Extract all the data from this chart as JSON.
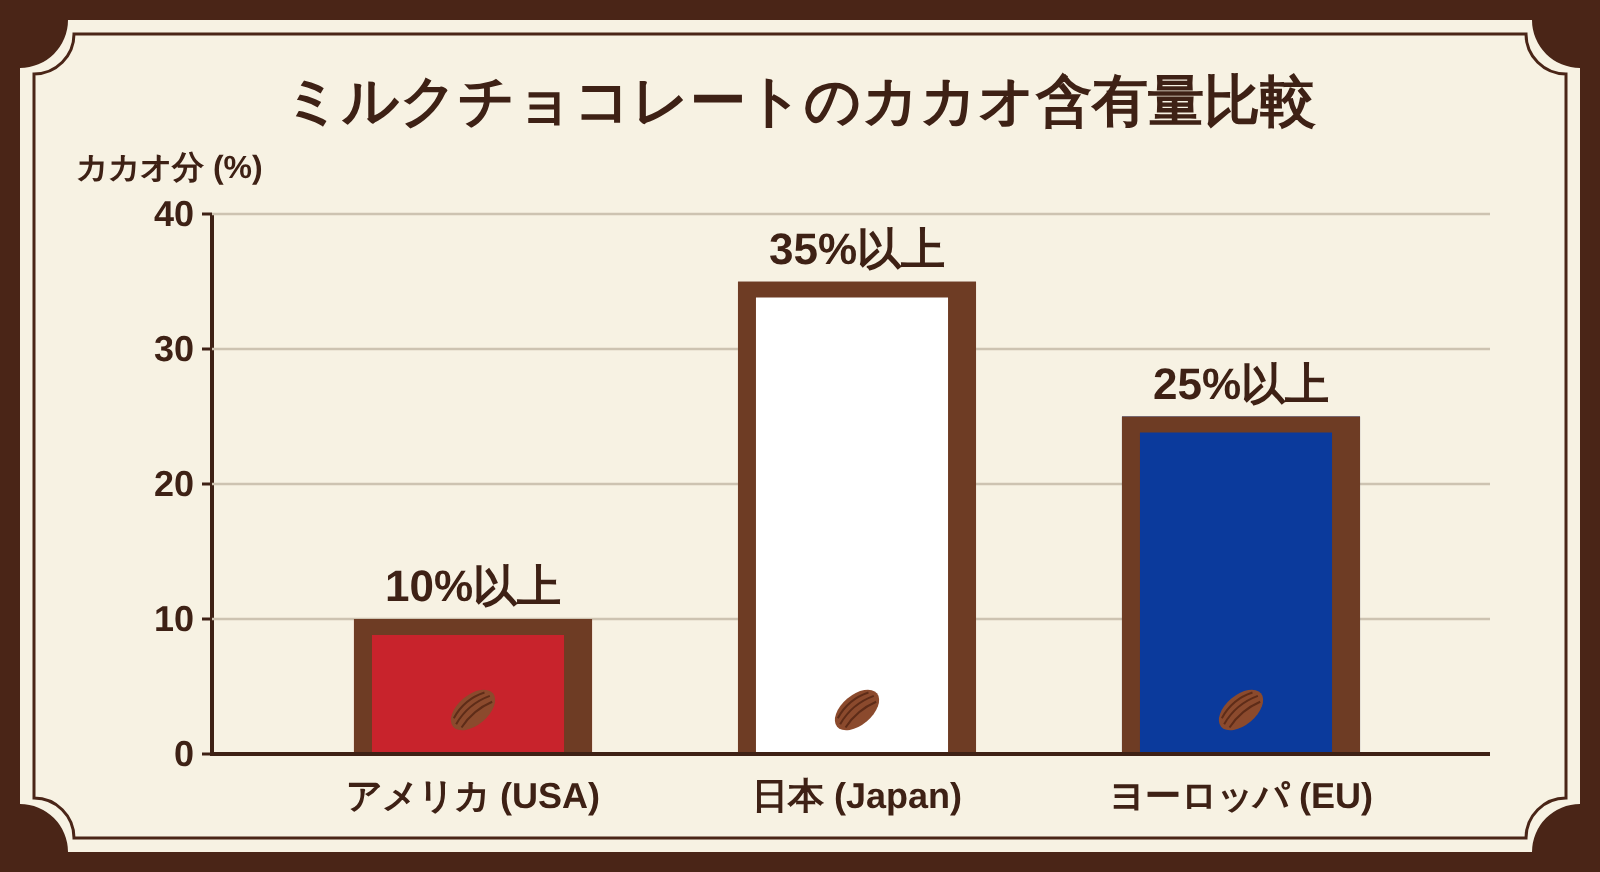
{
  "chart_data": {
    "type": "bar",
    "title": "ミルクチョコレートのカカオ含有量比較",
    "ylabel": "カカオ分 (%)",
    "categories": [
      "アメリカ (USA)",
      "日本 (Japan)",
      "ヨーロッパ (EU)"
    ],
    "values": [
      10,
      35,
      25
    ],
    "colors": [
      "#c8232c",
      "#ffffff",
      "#0b3a9c"
    ],
    "value_labels": [
      "10%以上",
      "35%以上",
      "25%以上"
    ],
    "ylim": [
      0,
      40
    ],
    "yticks": [
      0,
      10,
      20,
      30,
      40
    ],
    "grid": "y"
  }
}
